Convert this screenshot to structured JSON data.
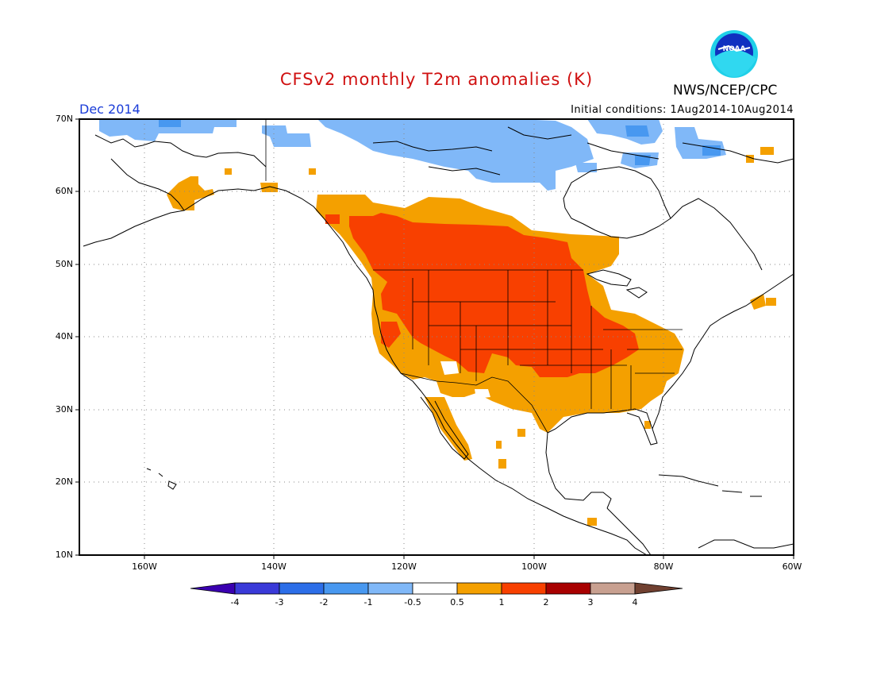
{
  "header": {
    "title": "CFSv2 monthly T2m anomalies (K)",
    "organization": "NWS/NCEP/CPC",
    "logo_text": "NOAA",
    "valid_month": "Dec 2014",
    "initial_conditions": "Initial conditions: 1Aug2014-10Aug2014"
  },
  "map": {
    "lat_labels": [
      "70N",
      "60N",
      "50N",
      "40N",
      "30N",
      "20N",
      "10N"
    ],
    "lon_labels": [
      "160W",
      "140W",
      "120W",
      "100W",
      "80W",
      "60W"
    ],
    "extent": {
      "lon_min": -170,
      "lon_max": -60,
      "lat_min": 10,
      "lat_max": 70
    }
  },
  "colorbar": {
    "labels": [
      "-4",
      "-3",
      "-2",
      "-1",
      "-0.5",
      "0.5",
      "1",
      "2",
      "3",
      "4"
    ],
    "colors": [
      "#3a00b0",
      "#3a3ad8",
      "#2c6ee8",
      "#4898f0",
      "#80b8f8",
      "#ffffff",
      "#f4a000",
      "#f84000",
      "#a80000",
      "#c8a090",
      "#704030"
    ]
  },
  "colors": {
    "title": "#d01010",
    "month": "#1a3cd8",
    "light_blue": "#80b8f8",
    "mid_blue": "#4898f0",
    "orange": "#f4a000",
    "red_orange": "#f84000"
  }
}
